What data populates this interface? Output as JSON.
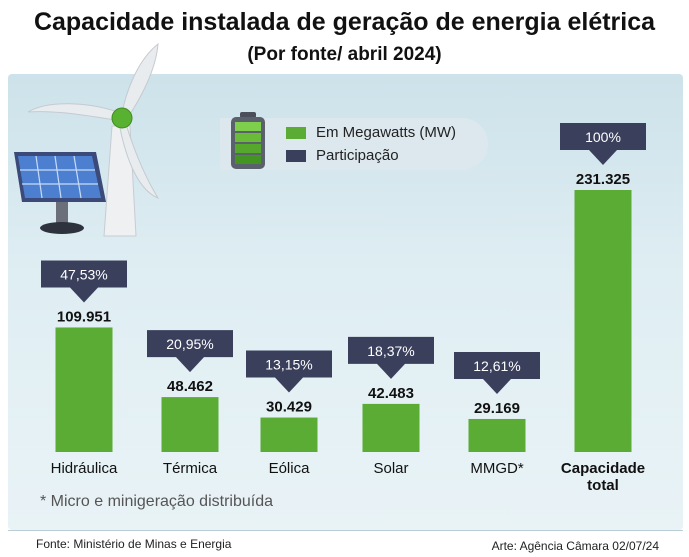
{
  "header": {
    "title": "Capacidade instalada de geração de energia elétrica",
    "subtitle": "(Por fonte/ abril 2024)"
  },
  "legend": {
    "items": [
      {
        "label": "Em Megawatts (MW)",
        "color": "#5aac34"
      },
      {
        "label": "Participação",
        "color": "#3a3f5c"
      }
    ]
  },
  "chart_data": {
    "type": "bar",
    "categories": [
      "Hidráulica",
      "Térmica",
      "Eólica",
      "Solar",
      "MMGD*",
      "Capacidade total"
    ],
    "values": [
      109951,
      48462,
      30429,
      42483,
      29169,
      231325
    ],
    "value_labels": [
      "109.951",
      "48.462",
      "30.429",
      "42.483",
      "29.169",
      "231.325"
    ],
    "shares": [
      "47,53%",
      "20,95%",
      "13,15%",
      "18,37%",
      "12,61%",
      "100%"
    ],
    "category_lines": [
      [
        "Hidráulica"
      ],
      [
        "Térmica"
      ],
      [
        "Eólica"
      ],
      [
        "Solar"
      ],
      [
        "MMGD*"
      ],
      [
        "Capacidade",
        "total"
      ]
    ],
    "bold_categories": [
      false,
      false,
      false,
      false,
      false,
      true
    ],
    "series": [
      {
        "name": "Em Megawatts (MW)",
        "values": [
          109951,
          48462,
          30429,
          42483,
          29169,
          231325
        ]
      },
      {
        "name": "Participação",
        "values": [
          47.53,
          20.95,
          13.15,
          18.37,
          12.61,
          100
        ]
      }
    ],
    "ylim": [
      0,
      231325
    ],
    "grid": false,
    "legend_position": "top-center"
  },
  "colors": {
    "bar": "#5aac34",
    "callout": "#3a3f5c",
    "panel": "#d6e8ee"
  },
  "footnote": "* Micro e minigeração distribuída",
  "source": "Fonte: Ministério de Minas e Energia",
  "credit": "Arte: Agência Câmara 02/07/24"
}
